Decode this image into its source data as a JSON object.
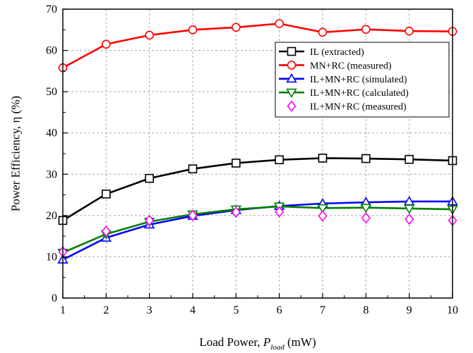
{
  "chart_data": {
    "type": "line",
    "title": "",
    "xlabel": {
      "main": "Load Power, ",
      "var": "P",
      "sub": "load",
      "unit": " (mW)"
    },
    "ylabel": "Power Efficiency, η (%)",
    "xlim": [
      1,
      10
    ],
    "ylim": [
      0,
      70
    ],
    "xticks": [
      1,
      2,
      3,
      4,
      5,
      6,
      7,
      8,
      9,
      10
    ],
    "yticks": [
      0,
      10,
      20,
      30,
      40,
      50,
      60,
      70
    ],
    "grid": true,
    "legend_position": "upper-right",
    "x": [
      1,
      2,
      3,
      4,
      5,
      6,
      7,
      8,
      9,
      10
    ],
    "series": [
      {
        "name": "IL (extracted)",
        "color": "#000000",
        "marker": "square",
        "line": true,
        "values": [
          18.8,
          25.2,
          29.0,
          31.3,
          32.7,
          33.5,
          33.9,
          33.8,
          33.6,
          33.3
        ]
      },
      {
        "name": "MN+RC (measured)",
        "color": "#ff0000",
        "marker": "circle",
        "line": true,
        "values": [
          55.8,
          61.5,
          63.7,
          65.0,
          65.6,
          66.5,
          64.4,
          65.1,
          64.7,
          64.6
        ]
      },
      {
        "name": "IL+MN+RC (simulated)",
        "color": "#0000ff",
        "marker": "triangle-up",
        "line": true,
        "values": [
          9.3,
          14.6,
          17.8,
          19.9,
          21.3,
          22.3,
          22.9,
          23.2,
          23.4,
          23.4
        ]
      },
      {
        "name": "IL+MN+RC (calculated)",
        "color": "#008000",
        "marker": "triangle-down",
        "line": true,
        "values": [
          11.0,
          15.5,
          18.5,
          20.3,
          21.5,
          22.2,
          21.8,
          21.9,
          21.7,
          21.5
        ]
      },
      {
        "name": "IL+MN+RC (measured)",
        "color": "#ff00ff",
        "marker": "diamond",
        "line": false,
        "values": [
          11.2,
          16.2,
          18.8,
          20.0,
          20.8,
          20.9,
          19.9,
          19.4,
          19.1,
          18.8
        ]
      }
    ]
  }
}
